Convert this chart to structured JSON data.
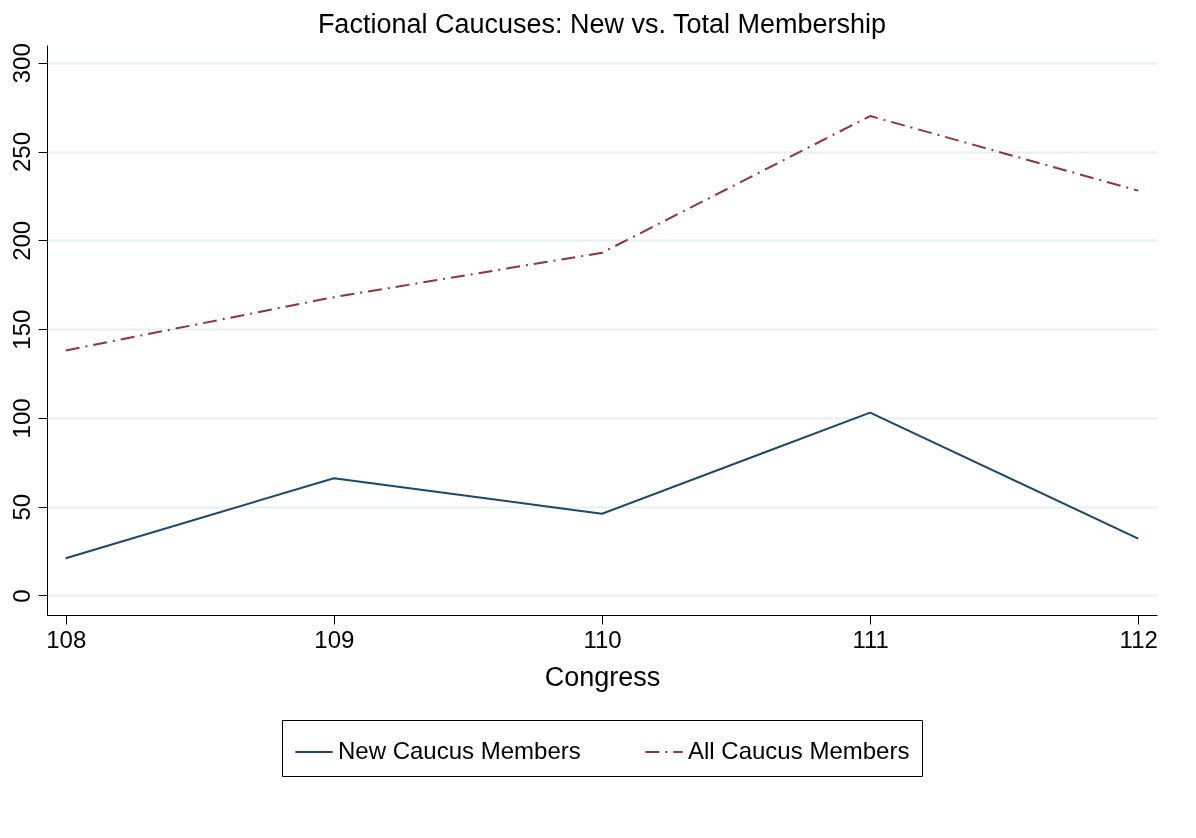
{
  "chart_data": {
    "type": "line",
    "title": "Factional Caucuses: New vs. Total Membership",
    "xlabel": "Congress",
    "x": [
      108,
      109,
      110,
      111,
      112
    ],
    "series": [
      {
        "name": "New Caucus Members",
        "color": "#1a476f",
        "line_style": "solid",
        "values": [
          21,
          66,
          46,
          103,
          32
        ]
      },
      {
        "name": "All Caucus Members",
        "color": "#90353b",
        "line_style": "dashdot",
        "values": [
          138,
          168,
          193,
          270,
          228
        ]
      }
    ],
    "xlim": [
      107.93,
      112.07
    ],
    "xticks": [
      108,
      109,
      110,
      111,
      112
    ],
    "ylim": [
      -11,
      310
    ],
    "yticks": [
      0,
      50,
      100,
      150,
      200,
      250,
      300
    ],
    "grid": "y",
    "legend": "bottom",
    "marker": "none"
  }
}
